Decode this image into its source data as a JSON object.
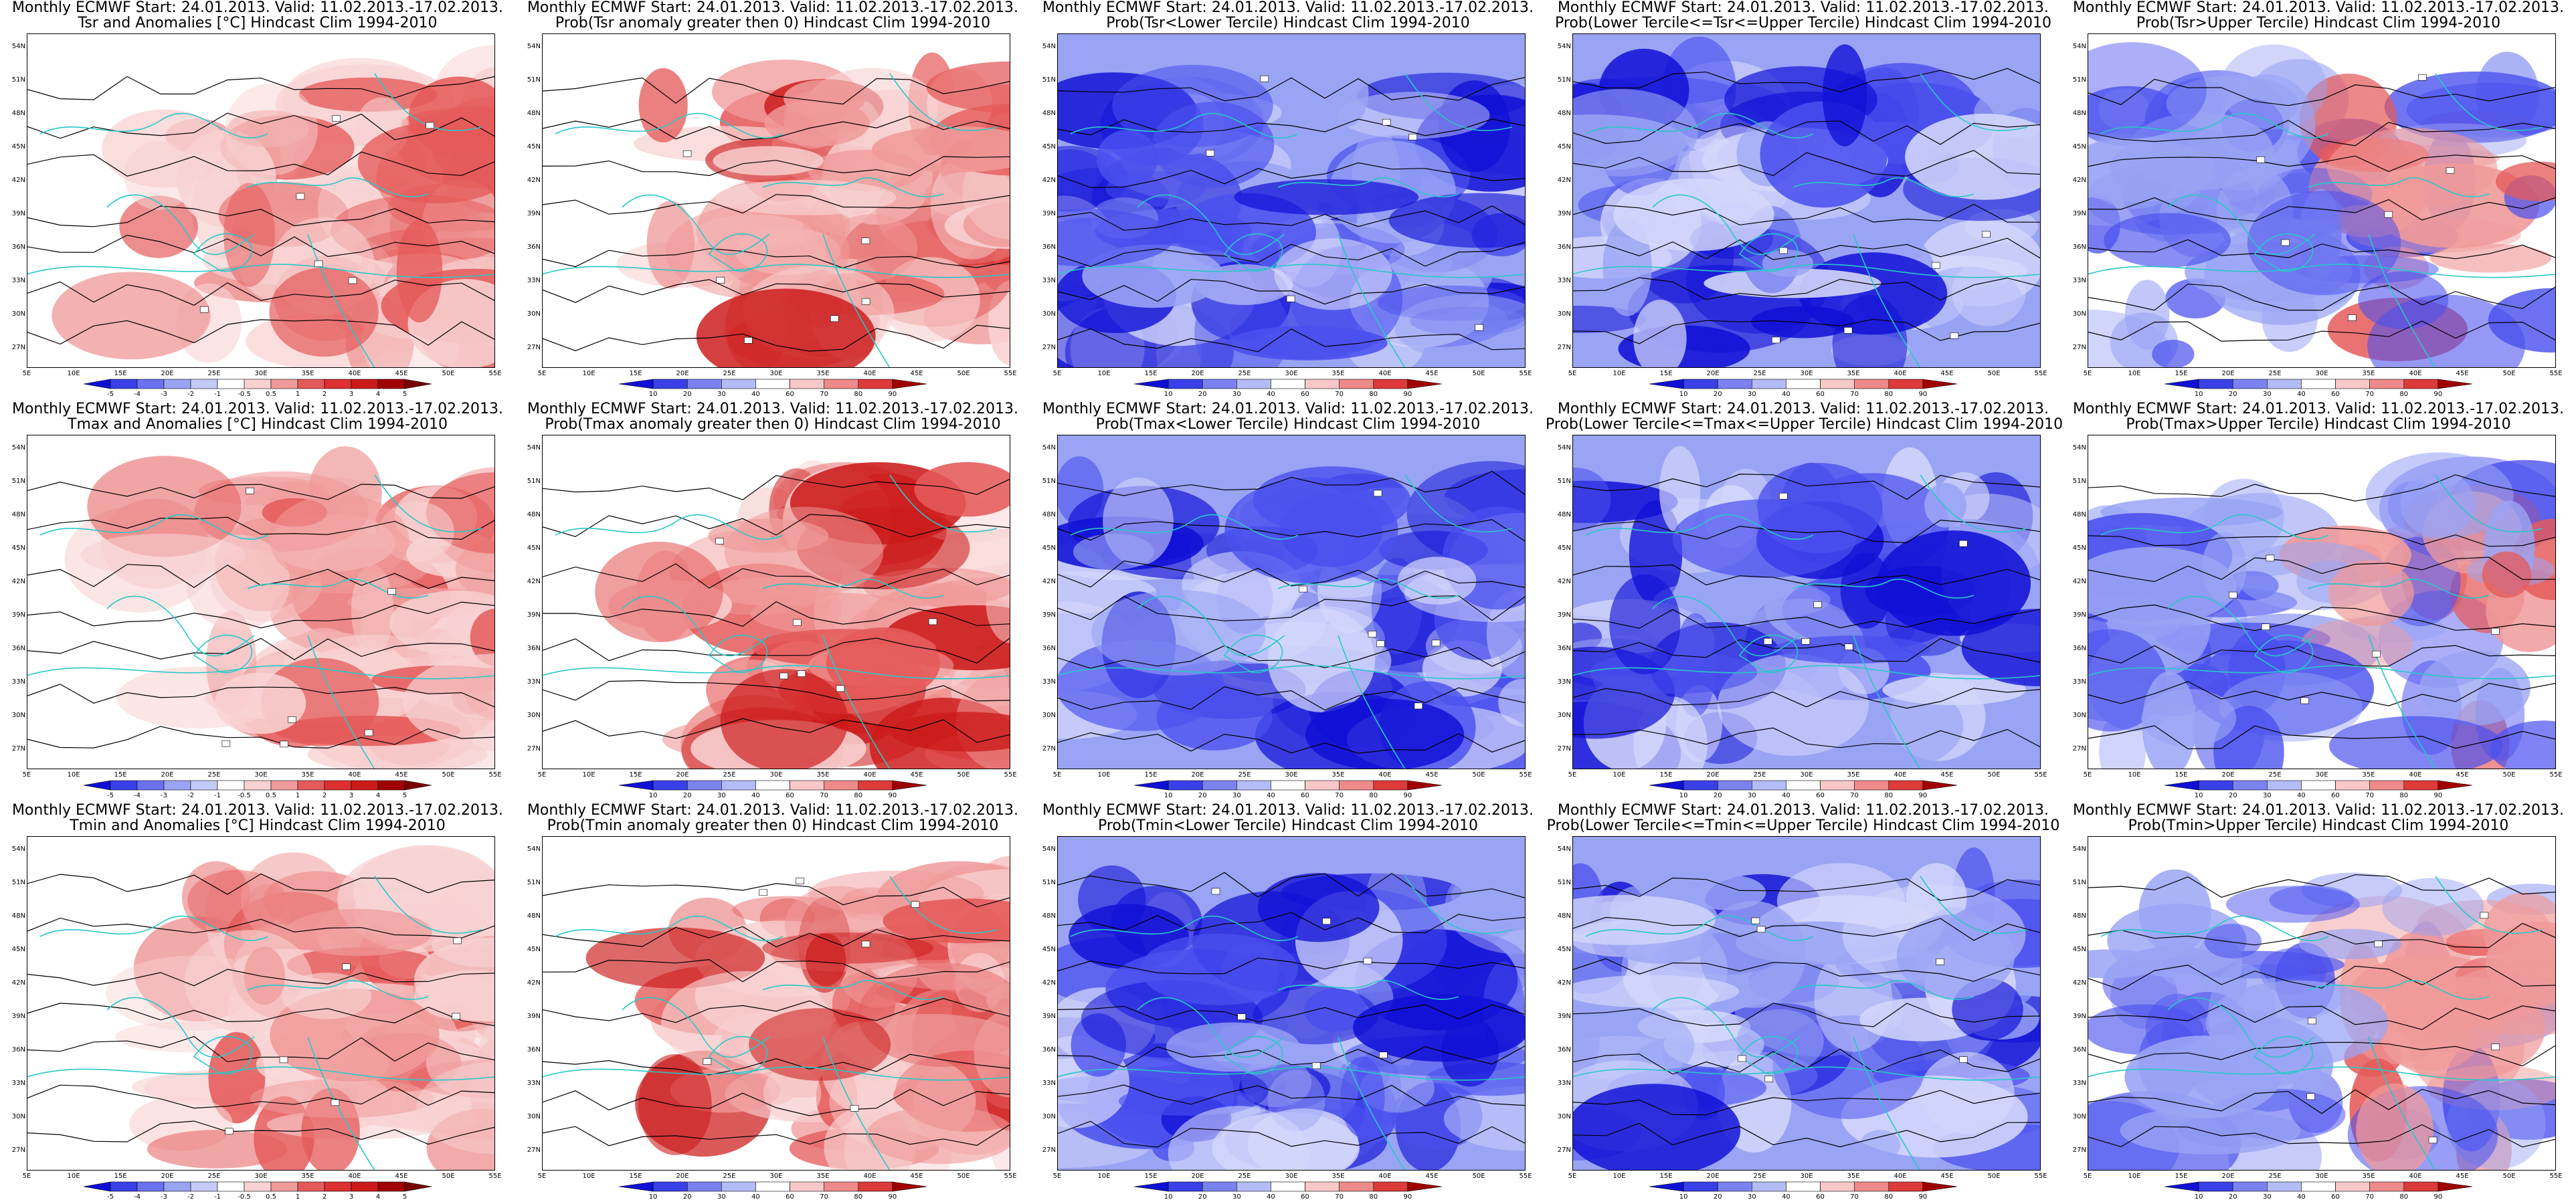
{
  "grid": {
    "rows": 3,
    "cols": 5
  },
  "colors": {
    "blue_dark": "#1010d6",
    "blue_mid": "#4a50ee",
    "blue_light": "#9aa4f4",
    "blue_pale": "#d4d8fb",
    "red_pale": "#f8d2d2",
    "red_light": "#f09a9a",
    "red_mid": "#e55a5a",
    "red_dark": "#cc1a1a",
    "coast": "#28c8c8",
    "contour": "#000000"
  },
  "axes": {
    "lat_labels": [
      "54N",
      "51N",
      "48N",
      "45N",
      "42N",
      "39N",
      "36N",
      "33N",
      "30N",
      "27N"
    ],
    "lon_labels": [
      "5E",
      "10E",
      "15E",
      "20E",
      "25E",
      "30E",
      "35E",
      "40E",
      "45E",
      "50E",
      "55E"
    ]
  },
  "colorbars": {
    "anomaly": {
      "labels": [
        "-5",
        "-4",
        "-3",
        "-2",
        "-1",
        "-0.5",
        "0.5",
        "1",
        "2",
        "3",
        "4",
        "5"
      ]
    },
    "probability": {
      "labels": [
        "10",
        "20",
        "30",
        "40",
        "60",
        "70",
        "80",
        "90"
      ]
    }
  },
  "panels": [
    {
      "line1": "Monthly ECMWF Start: 24.01.2013. Valid: 11.02.2013.-17.02.2013.",
      "line2": "Tsr and Anomalies [°C] Hindcast Clim 1994-2010",
      "scheme": "anomaly",
      "intensity": 0.55,
      "colorbar": "anomaly"
    },
    {
      "line1": "Monthly ECMWF Start: 24.01.2013. Valid: 11.02.2013.-17.02.2013.",
      "line2": "Prob(Tsr anomaly greater then 0) Hindcast Clim 1994-2010",
      "scheme": "red",
      "intensity": 0.7,
      "colorbar": "probability"
    },
    {
      "line1": "Monthly ECMWF Start: 24.01.2013. Valid: 11.02.2013.-17.02.2013.",
      "line2": "Prob(Tsr<Lower Tercile) Hindcast Clim 1994-2010",
      "scheme": "blue",
      "intensity": 0.85,
      "colorbar": "probability"
    },
    {
      "line1": "Monthly ECMWF Start: 24.01.2013. Valid: 11.02.2013.-17.02.2013.",
      "line2": "Prob(Lower Tercile<=Tsr<=Upper Tercile) Hindcast Clim 1994-2010",
      "scheme": "blue",
      "intensity": 0.55,
      "colorbar": "probability"
    },
    {
      "line1": "Monthly ECMWF Start: 24.01.2013. Valid: 11.02.2013.-17.02.2013.",
      "line2": "Prob(Tsr>Upper Tercile) Hindcast Clim 1994-2010",
      "scheme": "mixed",
      "intensity": 0.5,
      "colorbar": "probability"
    },
    {
      "line1": "Monthly ECMWF Start: 24.01.2013. Valid: 11.02.2013.-17.02.2013.",
      "line2": "Tmax and Anomalies [°C] Hindcast Clim 1994-2010",
      "scheme": "anomaly",
      "intensity": 0.5,
      "colorbar": "anomaly"
    },
    {
      "line1": "Monthly ECMWF Start: 24.01.2013. Valid: 11.02.2013.-17.02.2013.",
      "line2": "Prob(Tmax anomaly greater then 0) Hindcast Clim 1994-2010",
      "scheme": "red",
      "intensity": 0.55,
      "colorbar": "probability"
    },
    {
      "line1": "Monthly ECMWF Start: 24.01.2013. Valid: 11.02.2013.-17.02.2013.",
      "line2": "Prob(Tmax<Lower Tercile) Hindcast Clim 1994-2010",
      "scheme": "blue",
      "intensity": 0.8,
      "colorbar": "probability"
    },
    {
      "line1": "Monthly ECMWF Start: 24.01.2013. Valid: 11.02.2013.-17.02.2013.",
      "line2": "Prob(Lower Tercile<=Tmax<=Upper Tercile) Hindcast Clim 1994-2010",
      "scheme": "blue",
      "intensity": 0.5,
      "colorbar": "probability"
    },
    {
      "line1": "Monthly ECMWF Start: 24.01.2013. Valid: 11.02.2013.-17.02.2013.",
      "line2": "Prob(Tmax>Upper Tercile) Hindcast Clim 1994-2010",
      "scheme": "mixed",
      "intensity": 0.45,
      "colorbar": "probability"
    },
    {
      "line1": "Monthly ECMWF Start: 24.01.2013. Valid: 11.02.2013.-17.02.2013.",
      "line2": "Tmin and Anomalies [°C] Hindcast Clim 1994-2010",
      "scheme": "anomaly",
      "intensity": 0.65,
      "colorbar": "anomaly"
    },
    {
      "line1": "Monthly ECMWF Start: 24.01.2013. Valid: 11.02.2013.-17.02.2013.",
      "line2": "Prob(Tmin anomaly greater then 0) Hindcast Clim 1994-2010",
      "scheme": "red",
      "intensity": 0.8,
      "colorbar": "probability"
    },
    {
      "line1": "Monthly ECMWF Start: 24.01.2013. Valid: 11.02.2013.-17.02.2013.",
      "line2": "Prob(Tmin<Lower Tercile) Hindcast Clim 1994-2010",
      "scheme": "blue",
      "intensity": 0.8,
      "colorbar": "probability"
    },
    {
      "line1": "Monthly ECMWF Start: 24.01.2013. Valid: 11.02.2013.-17.02.2013.",
      "line2": "Prob(Lower Tercile<=Tmin<=Upper Tercile) Hindcast Clim 1994-2010",
      "scheme": "blue",
      "intensity": 0.6,
      "colorbar": "probability"
    },
    {
      "line1": "Monthly ECMWF Start: 24.01.2013. Valid: 11.02.2013.-17.02.2013.",
      "line2": "Prob(Tmin>Upper Tercile) Hindcast Clim 1994-2010",
      "scheme": "mixed",
      "intensity": 0.55,
      "colorbar": "probability"
    }
  ]
}
